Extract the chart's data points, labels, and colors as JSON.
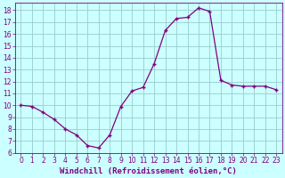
{
  "x": [
    0,
    1,
    2,
    3,
    4,
    5,
    6,
    7,
    8,
    9,
    10,
    11,
    12,
    13,
    14,
    15,
    16,
    17,
    18,
    19,
    20,
    21,
    22,
    23
  ],
  "y": [
    10,
    9.9,
    9.4,
    8.8,
    8.0,
    7.5,
    6.6,
    6.4,
    7.5,
    9.9,
    11.2,
    11.5,
    13.5,
    16.3,
    17.3,
    17.4,
    18.2,
    17.9,
    12.1,
    11.7,
    11.6,
    11.6,
    11.6,
    11.3
  ],
  "line_color": "#800080",
  "marker": "+",
  "marker_size": 3,
  "marker_edge_width": 1.0,
  "line_width": 0.9,
  "bg_color": "#ccffff",
  "grid_color": "#99cccc",
  "xlabel": "Windchill (Refroidissement éolien,°C)",
  "xlim": [
    -0.5,
    23.5
  ],
  "ylim": [
    6,
    18.6
  ],
  "yticks": [
    6,
    7,
    8,
    9,
    10,
    11,
    12,
    13,
    14,
    15,
    16,
    17,
    18
  ],
  "xticks": [
    0,
    1,
    2,
    3,
    4,
    5,
    6,
    7,
    8,
    9,
    10,
    11,
    12,
    13,
    14,
    15,
    16,
    17,
    18,
    19,
    20,
    21,
    22,
    23
  ],
  "tick_label_fontsize": 5.5,
  "xlabel_fontsize": 6.5,
  "axis_label_color": "#800080"
}
